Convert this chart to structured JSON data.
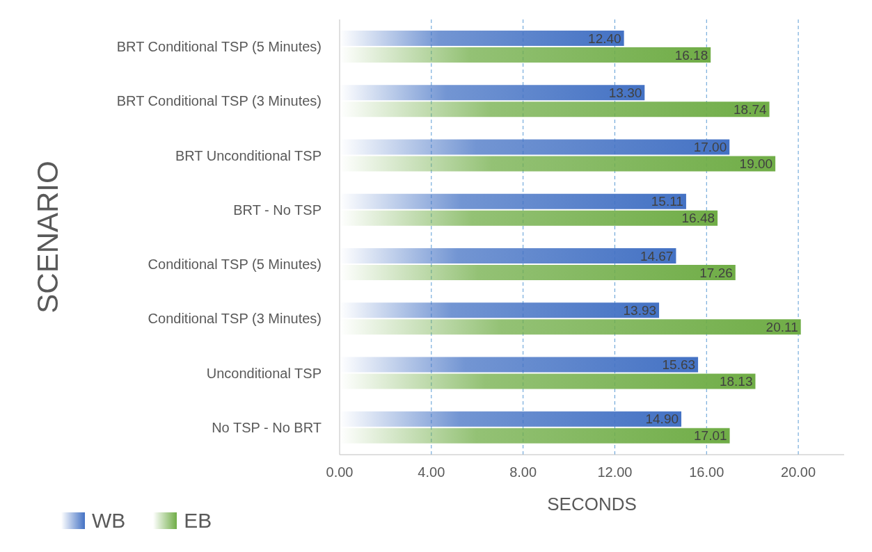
{
  "chart_data": {
    "type": "bar",
    "orientation": "horizontal",
    "xlabel": "SECONDS",
    "ylabel": "SCENARIO",
    "categories": [
      "BRT Conditional TSP (5 Minutes)",
      "BRT Conditional TSP (3 Minutes)",
      "BRT Unconditional TSP",
      "BRT - No TSP",
      "Conditional TSP (5 Minutes)",
      "Conditional TSP (3 Minutes)",
      "Unconditional TSP",
      "No TSP - No BRT"
    ],
    "series": [
      {
        "name": "WB",
        "color": "#4472c4",
        "values": [
          12.4,
          13.3,
          17,
          15.11,
          14.67,
          13.93,
          15.63,
          14.9
        ],
        "value_labels": [
          "12.40",
          "13.30",
          "17.00",
          "15.11",
          "14.67",
          "13.93",
          "15.63",
          "14.90"
        ]
      },
      {
        "name": "EB",
        "color": "#70ad47",
        "values": [
          16.18,
          18.74,
          19,
          16.48,
          17.26,
          20.11,
          18.13,
          17.01
        ],
        "value_labels": [
          "16.18",
          "18.74",
          "19.00",
          "16.48",
          "17.26",
          "20.11",
          "18.13",
          "17.01"
        ]
      }
    ],
    "xlim": [
      0,
      22
    ],
    "xticks": [
      {
        "value": 0,
        "label": "0.00"
      },
      {
        "value": 4,
        "label": "4.00"
      },
      {
        "value": 8,
        "label": "8.00"
      },
      {
        "value": 12,
        "label": "12.00"
      },
      {
        "value": 16,
        "label": "16.00"
      },
      {
        "value": 20,
        "label": "20.00"
      }
    ],
    "grid": "x",
    "legend": "bottom left"
  }
}
